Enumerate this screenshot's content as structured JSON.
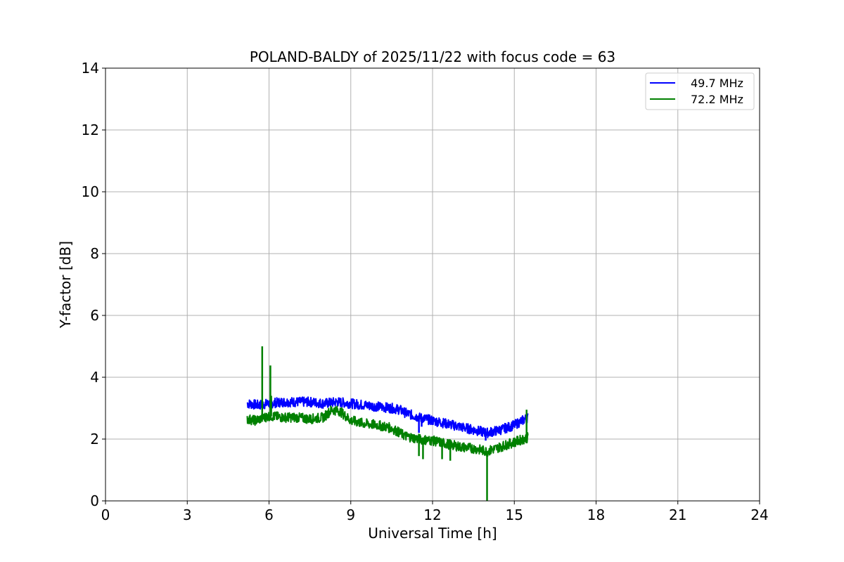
{
  "chart_data": {
    "type": "line",
    "title": "POLAND-BALDY of 2025/11/22 with focus code = 63",
    "xlabel": "Universal Time [h]",
    "ylabel": "Y-factor [dB]",
    "xlim": [
      0,
      24
    ],
    "ylim": [
      0,
      14
    ],
    "xticks": [
      0,
      3,
      6,
      9,
      12,
      15,
      18,
      21,
      24
    ],
    "yticks": [
      0,
      2,
      4,
      6,
      8,
      10,
      12,
      14
    ],
    "grid": true,
    "legend_position": "top-right",
    "series": [
      {
        "name": "49.7 MHz",
        "color": "#0000ff",
        "x": [
          5.2,
          5.6,
          6.0,
          6.5,
          7.0,
          7.5,
          8.0,
          8.5,
          9.0,
          9.5,
          10.0,
          10.5,
          10.8,
          11.0,
          11.5,
          12.0,
          12.5,
          13.0,
          13.5,
          14.0,
          14.5,
          15.0,
          15.5
        ],
        "y": [
          3.15,
          3.1,
          3.15,
          3.2,
          3.2,
          3.2,
          3.15,
          3.2,
          3.15,
          3.1,
          3.05,
          3.0,
          2.95,
          2.85,
          2.7,
          2.6,
          2.5,
          2.4,
          2.3,
          2.2,
          2.3,
          2.45,
          2.7
        ],
        "spikes": [
          {
            "x": 11.5,
            "y": 2.2
          },
          {
            "x": 11.6,
            "y": 2.4
          },
          {
            "x": 13.95,
            "y": 1.95
          },
          {
            "x": 5.75,
            "y": 2.95
          }
        ]
      },
      {
        "name": "72.2 MHz",
        "color": "#008000",
        "x": [
          5.2,
          5.5,
          6.0,
          6.5,
          7.0,
          7.5,
          8.0,
          8.3,
          8.6,
          9.0,
          9.5,
          10.0,
          10.5,
          11.0,
          11.5,
          12.0,
          12.5,
          13.0,
          13.5,
          14.0,
          14.5,
          15.0,
          15.5
        ],
        "y": [
          2.65,
          2.6,
          2.75,
          2.7,
          2.7,
          2.65,
          2.7,
          2.95,
          2.9,
          2.6,
          2.5,
          2.45,
          2.35,
          2.1,
          2.0,
          1.95,
          1.85,
          1.75,
          1.7,
          1.6,
          1.75,
          1.9,
          2.05
        ],
        "spikes": [
          {
            "x": 5.75,
            "y": 5.0
          },
          {
            "x": 6.05,
            "y": 4.38
          },
          {
            "x": 6.08,
            "y": 3.4
          },
          {
            "x": 11.5,
            "y": 1.45
          },
          {
            "x": 11.65,
            "y": 1.35
          },
          {
            "x": 12.35,
            "y": 1.35
          },
          {
            "x": 12.65,
            "y": 1.3
          },
          {
            "x": 14.0,
            "y": 0.0
          },
          {
            "x": 15.45,
            "y": 2.95
          }
        ]
      }
    ]
  }
}
